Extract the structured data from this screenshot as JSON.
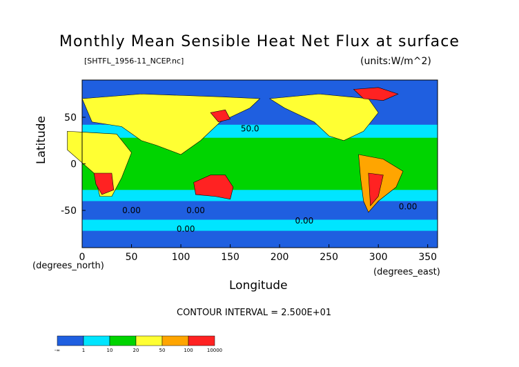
{
  "chart_data": {
    "type": "heatmap",
    "title": "Monthly Mean Sensible Heat Net Flux at surface",
    "subtitle_left": "[SHTFL_1956-11_NCEP.nc]",
    "subtitle_right": "(units:W/m^2)",
    "xlabel": "Longitude",
    "ylabel": "Latitude",
    "x_units": "(degrees_east)",
    "y_units": "(degrees_north)",
    "xlim": [
      0,
      360
    ],
    "ylim": [
      -90,
      90
    ],
    "x_ticks": [
      0,
      50,
      100,
      150,
      200,
      250,
      300,
      350
    ],
    "y_ticks": [
      -50,
      0,
      50
    ],
    "contour_labels": [
      "50.0",
      "0.00",
      "0.00",
      "0.00",
      "0.00",
      "0.00"
    ],
    "contour_interval_text": "CONTOUR INTERVAL = 2.500E+01",
    "colorbar": {
      "levels": [
        "-∞",
        "1",
        "10",
        "20",
        "50",
        "100",
        "10000"
      ],
      "colors": [
        "#1f5fe0",
        "#00e5ff",
        "#00d400",
        "#ffff33",
        "#ffa500",
        "#ff2222"
      ]
    },
    "colors": {
      "ocean_cold": "#1f5fe0",
      "light_cyan": "#00e5ff",
      "green": "#00d400",
      "yellow": "#ffff33",
      "orange": "#ffa500",
      "red": "#ff2222"
    }
  }
}
